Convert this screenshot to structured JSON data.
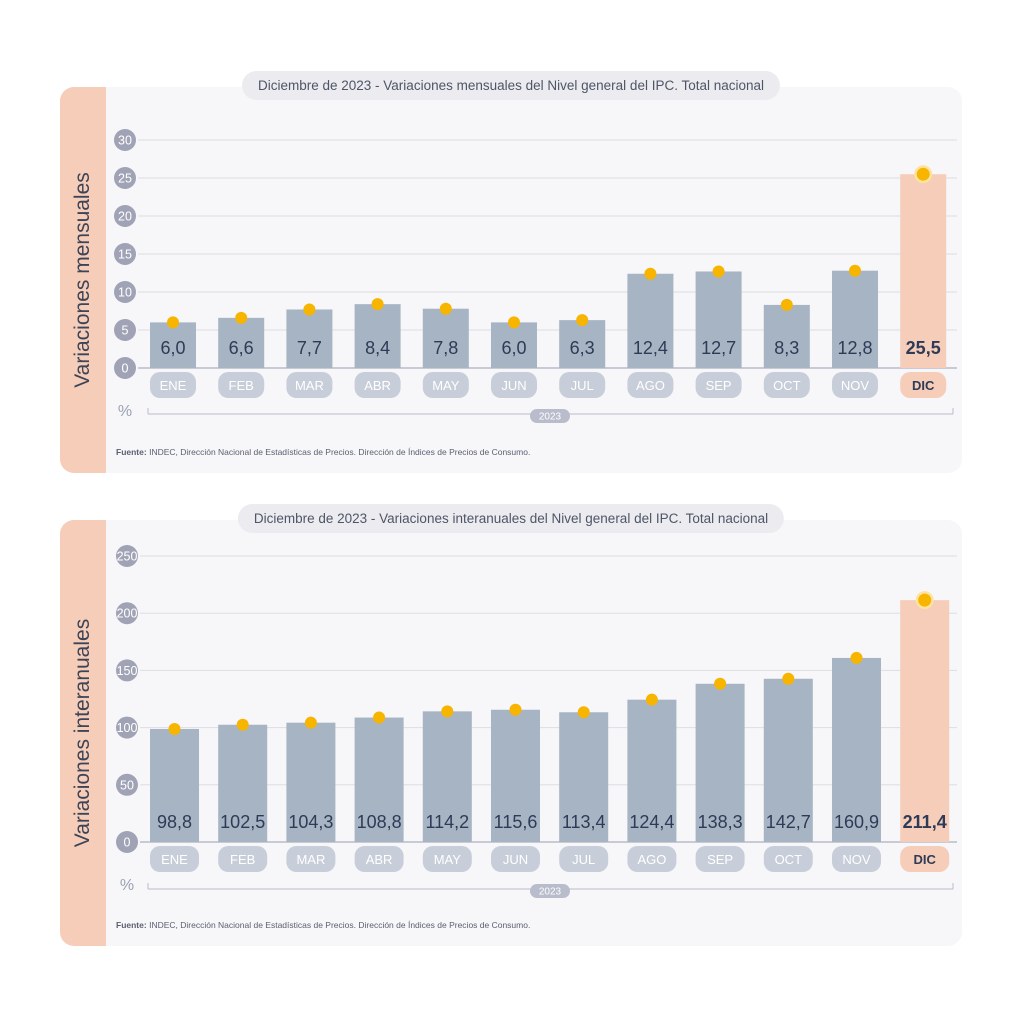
{
  "colors": {
    "bar": "#a7b4c3",
    "highlight": "#f5cdb9",
    "dot": "#f7b500",
    "axis": "#a0a3b5",
    "grid": "#dedde4",
    "value_text": "#2e3b57"
  },
  "source": {
    "label": "Fuente:",
    "text": "INDEC, Dirección Nacional de Estadísticas de Precios. Dirección de Índices de Precios de Consumo."
  },
  "chart_data": [
    {
      "type": "bar",
      "title_prefix": "Diciembre de 2023",
      "title_rest": " - Variaciones mensuales del Nivel general del IPC. Total nacional",
      "ylabel": "Variaciones mensuales",
      "unit": "%",
      "year": "2023",
      "ylim": [
        0,
        30
      ],
      "yticks": [
        "0",
        "5",
        "10",
        "15",
        "20",
        "25",
        "30"
      ],
      "categories": [
        "ENE",
        "FEB",
        "MAR",
        "ABR",
        "MAY",
        "JUN",
        "JUL",
        "AGO",
        "SEP",
        "OCT",
        "NOV",
        "DIC"
      ],
      "values": [
        6.0,
        6.6,
        7.7,
        8.4,
        7.8,
        6.0,
        6.3,
        12.4,
        12.7,
        8.3,
        12.8,
        25.5
      ],
      "labels": [
        "6,0",
        "6,6",
        "7,7",
        "8,4",
        "7,8",
        "6,0",
        "6,3",
        "12,4",
        "12,7",
        "8,3",
        "12,8",
        "25,5"
      ],
      "highlight_index": 11,
      "grid": true
    },
    {
      "type": "bar",
      "title_prefix": "Diciembre de 2023",
      "title_rest": " - Variaciones interanuales del Nivel general del IPC. Total nacional",
      "ylabel": "Variaciones interanuales",
      "unit": "%",
      "year": "2023",
      "ylim": [
        0,
        250
      ],
      "yticks": [
        "0",
        "50",
        "100",
        "150",
        "200",
        "250"
      ],
      "categories": [
        "ENE",
        "FEB",
        "MAR",
        "ABR",
        "MAY",
        "JUN",
        "JUL",
        "AGO",
        "SEP",
        "OCT",
        "NOV",
        "DIC"
      ],
      "values": [
        98.8,
        102.5,
        104.3,
        108.8,
        114.2,
        115.6,
        113.4,
        124.4,
        138.3,
        142.7,
        160.9,
        211.4
      ],
      "labels": [
        "98,8",
        "102,5",
        "104,3",
        "108,8",
        "114,2",
        "115,6",
        "113,4",
        "124,4",
        "138,3",
        "142,7",
        "160,9",
        "211,4"
      ],
      "highlight_index": 11,
      "grid": true
    }
  ]
}
